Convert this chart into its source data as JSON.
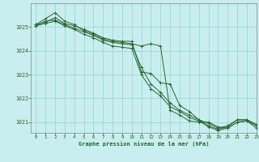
{
  "title": "Graphe pression niveau de la mer (hPa)",
  "background_color": "#c8eef0",
  "grid_color": "#98d4cc",
  "line_color": "#2d6632",
  "xlim": [
    -0.5,
    23
  ],
  "ylim": [
    1020.55,
    1026.0
  ],
  "yticks": [
    1021,
    1022,
    1023,
    1024,
    1025
  ],
  "xticks": [
    0,
    1,
    2,
    3,
    4,
    5,
    6,
    7,
    8,
    9,
    10,
    11,
    12,
    13,
    14,
    15,
    16,
    17,
    18,
    19,
    20,
    21,
    22,
    23
  ],
  "series": [
    [
      1025.1,
      1025.35,
      1025.6,
      1025.25,
      1025.1,
      1024.85,
      1024.7,
      1024.5,
      1024.4,
      1024.35,
      1024.3,
      1024.2,
      1024.3,
      1024.2,
      1021.5,
      1021.3,
      1021.05,
      1021.0,
      1021.0,
      1020.8,
      1020.75,
      1021.0,
      1021.05,
      1020.75
    ],
    [
      1025.1,
      1025.2,
      1025.4,
      1025.15,
      1025.05,
      1024.9,
      1024.75,
      1024.55,
      1024.45,
      1024.4,
      1024.4,
      1023.1,
      1023.05,
      1022.65,
      1022.6,
      1021.7,
      1021.45,
      1021.1,
      1020.95,
      1020.75,
      1020.85,
      1021.1,
      1021.1,
      1020.9
    ],
    [
      1025.05,
      1025.25,
      1025.3,
      1025.1,
      1024.95,
      1024.8,
      1024.65,
      1024.45,
      1024.35,
      1024.3,
      1024.25,
      1023.3,
      1022.6,
      1022.25,
      1021.8,
      1021.5,
      1021.3,
      1021.1,
      1020.85,
      1020.7,
      1020.8,
      1021.1,
      1021.1,
      1020.9
    ],
    [
      1025.05,
      1025.15,
      1025.25,
      1025.05,
      1024.9,
      1024.7,
      1024.55,
      1024.35,
      1024.2,
      1024.15,
      1024.1,
      1023.0,
      1022.4,
      1022.1,
      1021.65,
      1021.45,
      1021.2,
      1021.05,
      1020.8,
      1020.65,
      1020.75,
      1021.0,
      1021.05,
      1020.85
    ]
  ]
}
